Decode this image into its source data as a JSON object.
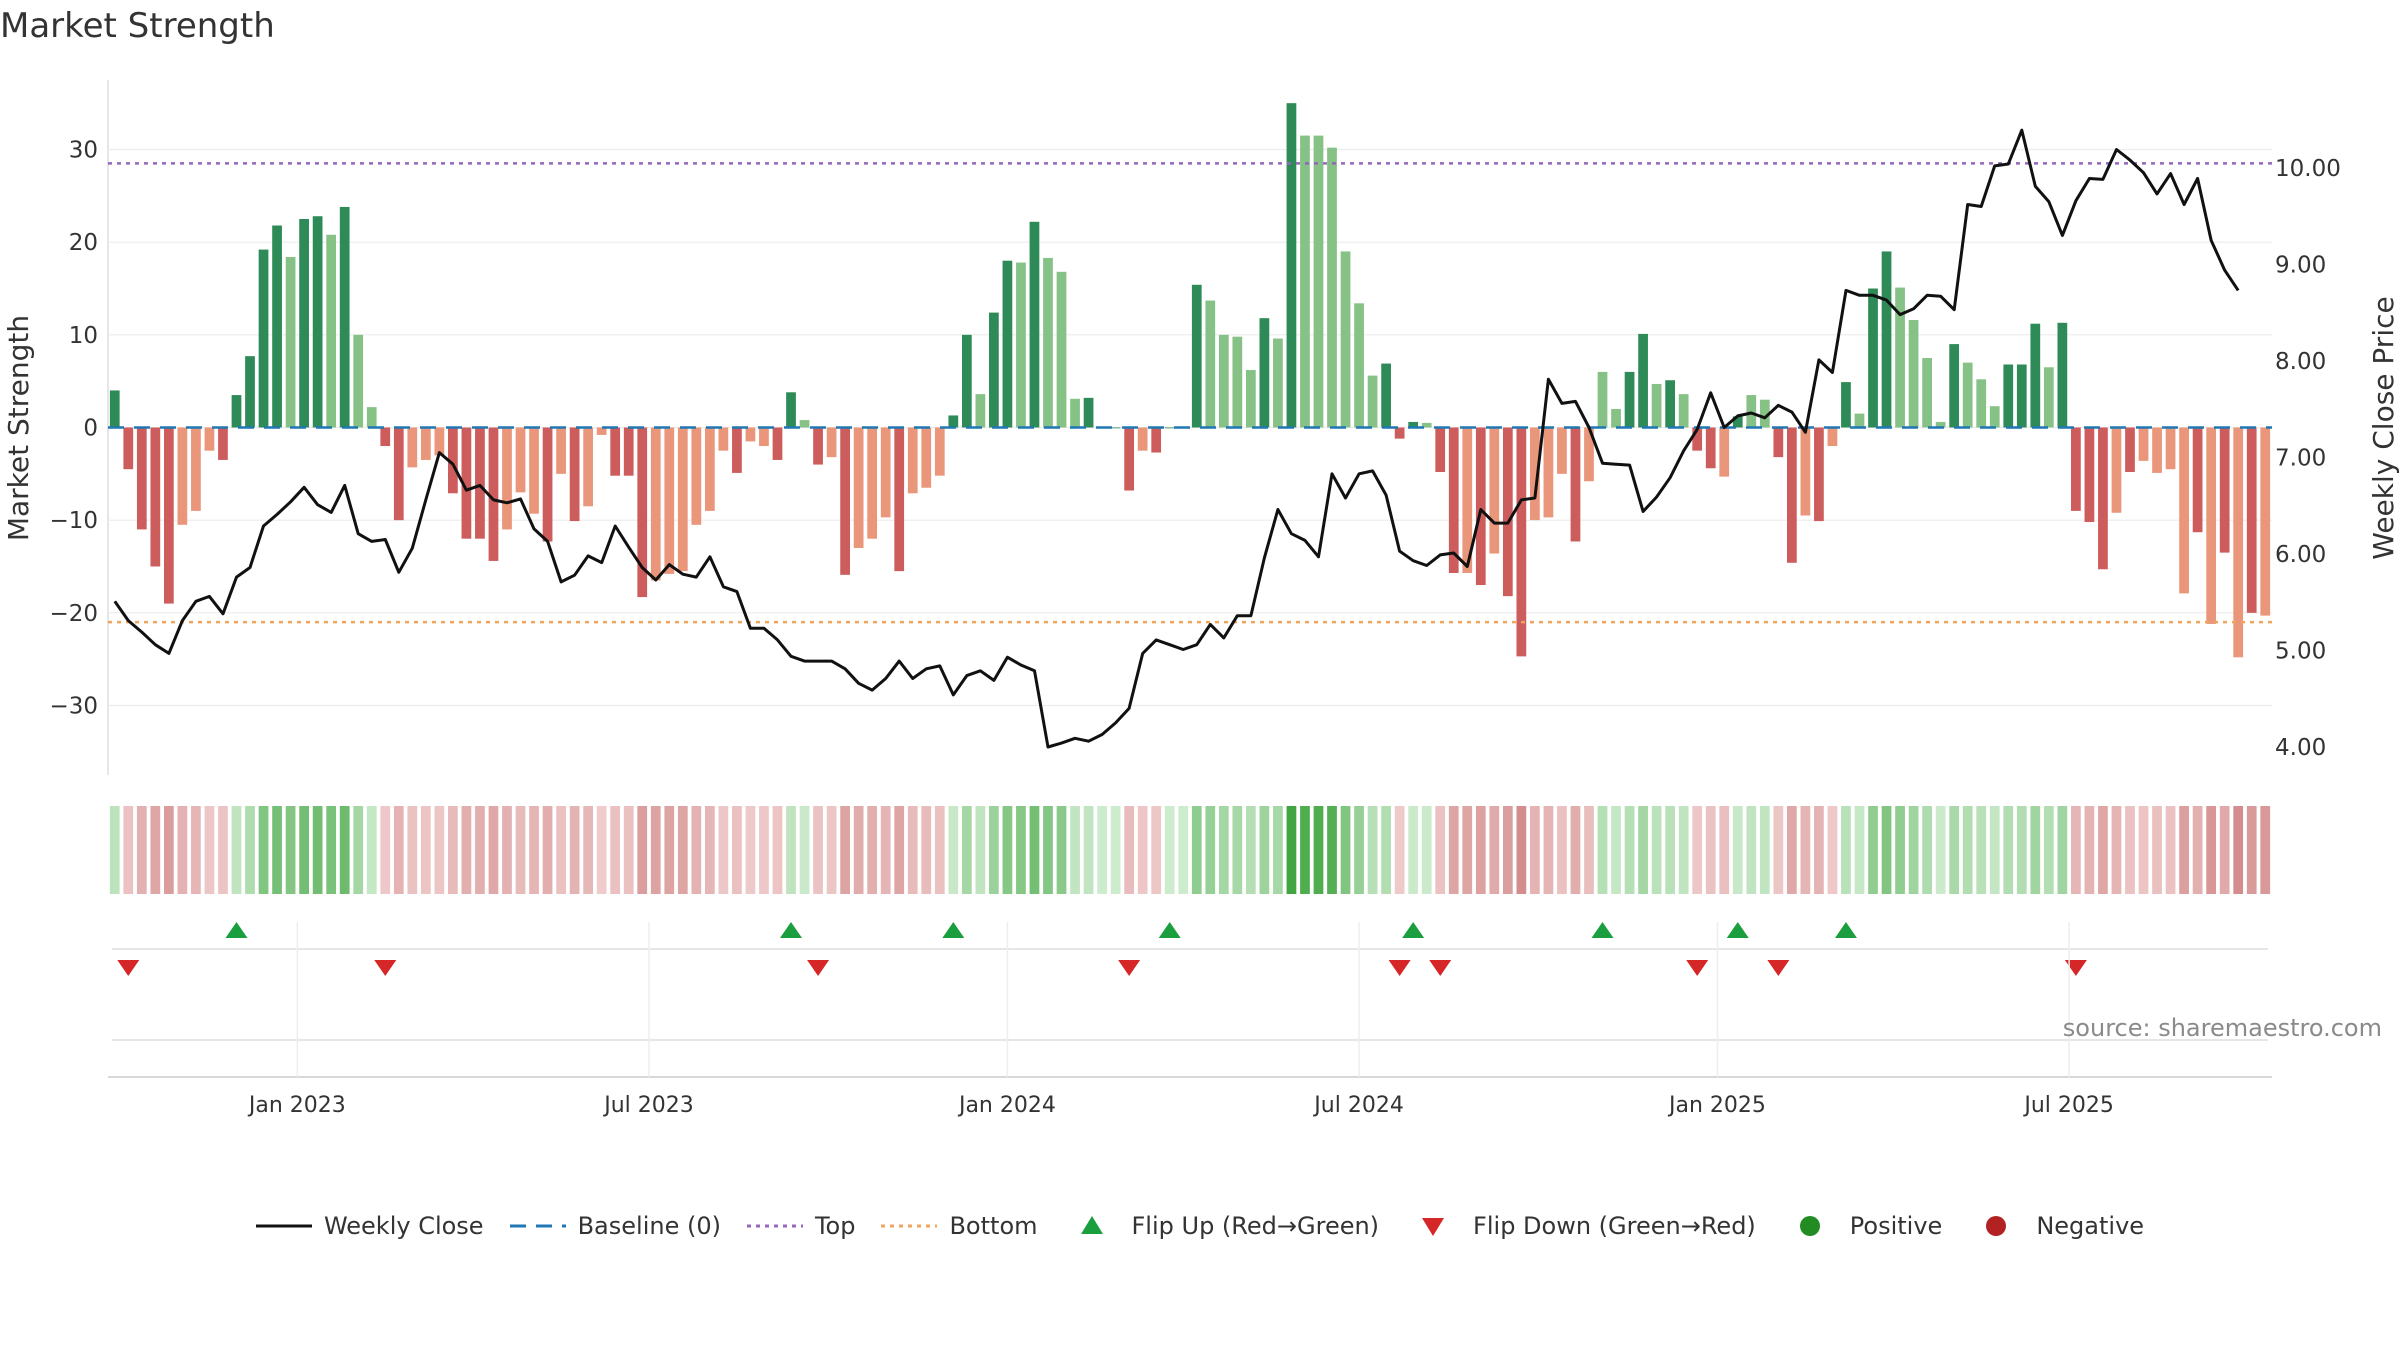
{
  "title": "Market Strength",
  "source": "source: sharemaestro.com",
  "colors": {
    "dark_green": "#2e8b57",
    "light_green": "#86c186",
    "dark_red": "#cd5c5c",
    "light_red": "#e9967a",
    "price_line": "#111111",
    "baseline": "#1f77b4",
    "top_line": "#9467bd",
    "bottom_line": "#f0a45d",
    "flip_up": "#1b9e3e",
    "flip_down": "#d62728",
    "positive": "#228b22",
    "negative": "#b22222"
  },
  "legend": [
    {
      "label": "Weekly Close",
      "symbol": "line"
    },
    {
      "label": "Baseline (0)",
      "symbol": "dash"
    },
    {
      "label": "Top",
      "symbol": "dot"
    },
    {
      "label": "Bottom",
      "symbol": "dotorange"
    },
    {
      "label": "Flip Up (Red→Green)",
      "symbol": "triup"
    },
    {
      "label": "Flip Down (Green→Red)",
      "symbol": "tridown"
    },
    {
      "label": "Positive",
      "symbol": "circgreen"
    },
    {
      "label": "Negative",
      "symbol": "circred"
    }
  ],
  "chart_data": {
    "type": "bar",
    "title": "Market Strength",
    "ylabel_left": "Market Strength",
    "ylabel_right": "Weekly Close Price",
    "y_left_ticks": [
      30,
      20,
      10,
      0,
      -10,
      -20,
      -30
    ],
    "y_left_tick_labels": [
      "30",
      "20",
      "10",
      "0",
      "−10",
      "−20",
      "−30"
    ],
    "y_left_range": [
      -37.5,
      37.5
    ],
    "y_right_ticks": [
      10,
      9,
      8,
      7,
      6,
      5,
      4
    ],
    "y_right_tick_labels": [
      "10.00",
      "9.00",
      "8.00",
      "7.00",
      "6.00",
      "5.00",
      "4.00"
    ],
    "y_right_range": [
      3.7,
      10.9
    ],
    "x_tick_labels": [
      "Jan 2023",
      "Jul 2023",
      "Jan 2024",
      "Jul 2024",
      "Jan 2025",
      "Jul 2025"
    ],
    "x_tick_weeks": [
      14,
      40,
      66.5,
      92.5,
      119,
      145
    ],
    "top_level": 28.5,
    "bottom_level": -21,
    "baseline_level": 0,
    "grid": true,
    "legend_position": "bottom",
    "strength": [
      4,
      -4.5,
      -11,
      -15,
      -19,
      -10.5,
      -9,
      -2.5,
      -3.5,
      3.5,
      7.7,
      19.2,
      21.8,
      18.4,
      22.5,
      22.8,
      20.8,
      23.8,
      10,
      2.2,
      -2,
      -10,
      -4.3,
      -3.5,
      -3,
      -7.1,
      -12,
      -12,
      -14.4,
      -11,
      -7,
      -9.3,
      -12.3,
      -5,
      -10.1,
      -8.5,
      -0.8,
      -5.2,
      -5.2,
      -18.3,
      -16.5,
      -15.8,
      -15.5,
      -10.5,
      -9,
      -2.5,
      -4.9,
      -1.5,
      -2,
      -3.5,
      3.8,
      0.8,
      -4,
      -3.2,
      -15.9,
      -13,
      -12,
      -9.7,
      -15.5,
      -7.1,
      -6.5,
      -5.2,
      1.3,
      10,
      3.6,
      12.4,
      18,
      17.8,
      22.2,
      18.3,
      16.8,
      3.1,
      3.2,
      0,
      0,
      -6.8,
      -2.5,
      -2.7,
      0,
      0,
      15.4,
      13.7,
      10,
      9.8,
      6.2,
      11.8,
      9.6,
      35,
      31.5,
      31.5,
      30.2,
      19,
      13.4,
      5.6,
      6.9,
      -1.2,
      0.6,
      0.5,
      -4.8,
      -15.7,
      -15.7,
      -17,
      -13.6,
      -18.2,
      -24.7,
      -10,
      -9.7,
      -5,
      -12.3,
      -5.8,
      6,
      2,
      6,
      10.1,
      4.7,
      5.1,
      3.6,
      -2.5,
      -4.4,
      -5.3,
      1.2,
      3.5,
      3,
      -3.2,
      -14.6,
      -9.5,
      -10.1,
      -2,
      4.9,
      1.5,
      15,
      19,
      15.1,
      11.6,
      7.5,
      0.6,
      9,
      7,
      5.2,
      2.3,
      6.8,
      6.8,
      11.2,
      6.5,
      11.3,
      -9,
      -10.2,
      -15.3,
      -9.2,
      -4.8,
      -3.6,
      -4.9,
      -4.5,
      -17.9,
      -11.3,
      -21.2,
      -13.5,
      -24.8,
      -20,
      -20.3
    ],
    "bar_shade": [
      "d",
      "d",
      "d",
      "d",
      "d",
      "l",
      "l",
      "l",
      "d",
      "d",
      "d",
      "d",
      "d",
      "l",
      "d",
      "d",
      "l",
      "d",
      "l",
      "l",
      "d",
      "d",
      "l",
      "l",
      "l",
      "d",
      "d",
      "d",
      "d",
      "l",
      "l",
      "l",
      "d",
      "l",
      "d",
      "l",
      "l",
      "d",
      "d",
      "d",
      "l",
      "l",
      "l",
      "l",
      "l",
      "l",
      "d",
      "l",
      "l",
      "d",
      "d",
      "l",
      "d",
      "l",
      "d",
      "l",
      "l",
      "l",
      "d",
      "l",
      "l",
      "l",
      "d",
      "d",
      "l",
      "d",
      "d",
      "l",
      "d",
      "l",
      "l",
      "l",
      "d",
      "d",
      "d",
      "d",
      "l",
      "d",
      "d",
      "d",
      "d",
      "l",
      "l",
      "l",
      "l",
      "d",
      "l",
      "d",
      "l",
      "l",
      "l",
      "l",
      "l",
      "l",
      "d",
      "d",
      "d",
      "l",
      "d",
      "d",
      "l",
      "d",
      "l",
      "d",
      "d",
      "l",
      "l",
      "l",
      "d",
      "l",
      "l",
      "l",
      "d",
      "d",
      "l",
      "d",
      "l",
      "d",
      "d",
      "l",
      "d",
      "l",
      "l",
      "d",
      "d",
      "l",
      "d",
      "l",
      "d",
      "l",
      "d",
      "d",
      "l",
      "l",
      "l",
      "l",
      "d",
      "l",
      "l",
      "l",
      "d",
      "d",
      "d",
      "l",
      "d",
      "d",
      "d",
      "d",
      "l",
      "d",
      "l",
      "l",
      "l",
      "l",
      "d",
      "l",
      "d",
      "l",
      "d",
      "l",
      "d"
    ],
    "weekly_close": [
      5.5,
      5.3,
      5.18,
      5.05,
      4.96,
      5.3,
      5.5,
      5.55,
      5.37,
      5.75,
      5.85,
      6.28,
      6.4,
      6.53,
      6.68,
      6.5,
      6.42,
      6.7,
      6.2,
      6.12,
      6.14,
      5.8,
      6.05,
      6.55,
      7.04,
      6.92,
      6.65,
      6.7,
      6.55,
      6.52,
      6.56,
      6.25,
      6.12,
      5.7,
      5.77,
      5.97,
      5.9,
      6.28,
      6.06,
      5.85,
      5.72,
      5.88,
      5.78,
      5.75,
      5.96,
      5.65,
      5.6,
      5.22,
      5.22,
      5.1,
      4.93,
      4.88,
      4.88,
      4.88,
      4.8,
      4.65,
      4.58,
      4.7,
      4.88,
      4.7,
      4.8,
      4.83,
      4.53,
      4.73,
      4.78,
      4.68,
      4.92,
      4.84,
      4.78,
      3.99,
      4.03,
      4.08,
      4.05,
      4.12,
      4.24,
      4.39,
      4.96,
      5.1,
      5.05,
      5.0,
      5.05,
      5.26,
      5.12,
      5.35,
      5.35,
      5.95,
      6.45,
      6.2,
      6.13,
      5.96,
      6.82,
      6.57,
      6.82,
      6.85,
      6.6,
      6.02,
      5.92,
      5.87,
      5.98,
      6.0,
      5.86,
      6.45,
      6.31,
      6.31,
      6.55,
      6.57,
      7.8,
      7.55,
      7.57,
      7.3,
      6.93,
      6.92,
      6.91,
      6.43,
      6.58,
      6.78,
      7.06,
      7.28,
      7.66,
      7.3,
      7.42,
      7.45,
      7.4,
      7.53,
      7.46,
      7.25,
      8.0,
      7.87,
      8.72,
      8.67,
      8.67,
      8.62,
      8.47,
      8.53,
      8.67,
      8.66,
      8.52,
      9.61,
      9.59,
      10.01,
      10.03,
      10.38,
      9.8,
      9.64,
      9.29,
      9.65,
      9.88,
      9.87,
      10.18,
      10.07,
      9.94,
      9.72,
      9.93,
      9.61,
      9.88,
      9.24,
      8.93,
      8.72
    ]
  }
}
